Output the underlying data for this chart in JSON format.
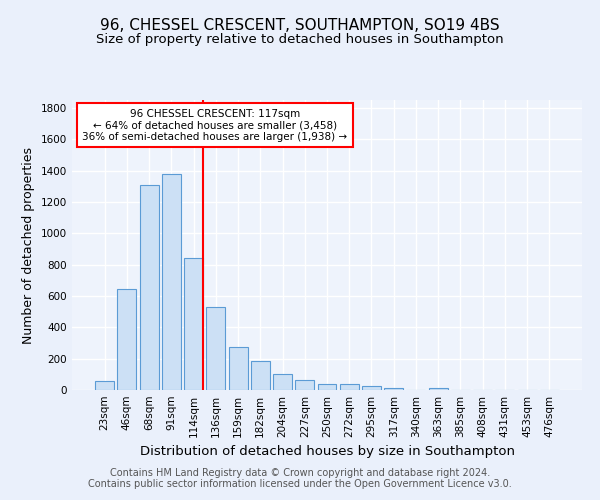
{
  "title1": "96, CHESSEL CRESCENT, SOUTHAMPTON, SO19 4BS",
  "title2": "Size of property relative to detached houses in Southampton",
  "xlabel": "Distribution of detached houses by size in Southampton",
  "ylabel": "Number of detached properties",
  "footer1": "Contains HM Land Registry data © Crown copyright and database right 2024.",
  "footer2": "Contains public sector information licensed under the Open Government Licence v3.0.",
  "bar_labels": [
    "23sqm",
    "46sqm",
    "68sqm",
    "91sqm",
    "114sqm",
    "136sqm",
    "159sqm",
    "182sqm",
    "204sqm",
    "227sqm",
    "250sqm",
    "272sqm",
    "295sqm",
    "317sqm",
    "340sqm",
    "363sqm",
    "385sqm",
    "408sqm",
    "431sqm",
    "453sqm",
    "476sqm"
  ],
  "bar_values": [
    55,
    645,
    1310,
    1380,
    840,
    530,
    275,
    185,
    105,
    65,
    37,
    37,
    25,
    12,
    0,
    10,
    0,
    0,
    0,
    0,
    0
  ],
  "bar_color": "#cce0f5",
  "bar_edge_color": "#5b9bd5",
  "vline_x": 4.42,
  "vline_color": "red",
  "annotation_text": "96 CHESSEL CRESCENT: 117sqm\n← 64% of detached houses are smaller (3,458)\n36% of semi-detached houses are larger (1,938) →",
  "annotation_box_color": "white",
  "annotation_box_edge": "red",
  "ylim": [
    0,
    1850
  ],
  "yticks": [
    0,
    200,
    400,
    600,
    800,
    1000,
    1200,
    1400,
    1600,
    1800
  ],
  "bg_color": "#eaf0fb",
  "plot_bg_color": "#eef3fc",
  "grid_color": "white",
  "title1_fontsize": 11,
  "title2_fontsize": 9.5,
  "xlabel_fontsize": 9.5,
  "ylabel_fontsize": 9,
  "footer_fontsize": 7,
  "annotation_fontsize": 7.5,
  "tick_fontsize": 7.5
}
